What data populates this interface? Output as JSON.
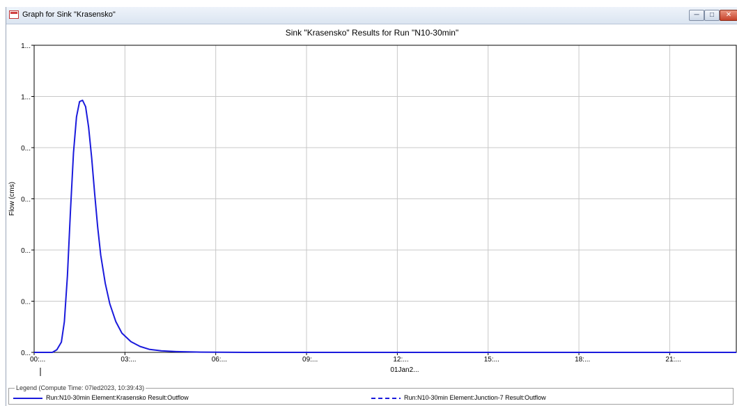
{
  "window": {
    "title": "Graph for Sink \"Krasensko\"",
    "buttons": {
      "minimize": "─",
      "maximize": "□",
      "close": "✕"
    }
  },
  "legend": {
    "caption": "Legend (Compute Time: 07led2023, 10:39:43)",
    "items": [
      {
        "label": "Run:N10-30min Element:Krasensko Result:Outflow",
        "color": "#1a1adc",
        "style": "solid"
      },
      {
        "label": "Run:N10-30min Element:Junction-7 Result:Outflow",
        "color": "#1a1adc",
        "style": "dashed"
      }
    ]
  },
  "chart_data": {
    "type": "line",
    "title": "Sink \"Krasensko\" Results for Run \"N10-30min\"",
    "xlabel": "01Jan2...",
    "ylabel": "Flow (cms)",
    "x_tick_labels": [
      "00:...",
      "03:...",
      "06:...",
      "09:...",
      "12:...",
      "15:...",
      "18:...",
      "21:..."
    ],
    "x_tick_hours": [
      0,
      3,
      6,
      9,
      12,
      15,
      18,
      21
    ],
    "xlim_hours": [
      0,
      23.2
    ],
    "y_tick_labels": [
      "0...",
      "0...",
      "0...",
      "0...",
      "0...",
      "1...",
      "1..."
    ],
    "ylim": [
      0,
      1.2
    ],
    "grid": true,
    "series": [
      {
        "name": "Run:N10-30min Element:Krasensko Result:Outflow",
        "color": "#1a1adc",
        "style": "solid",
        "points": [
          [
            0.0,
            0.0
          ],
          [
            0.6,
            0.0
          ],
          [
            0.75,
            0.01
          ],
          [
            0.9,
            0.04
          ],
          [
            1.0,
            0.12
          ],
          [
            1.1,
            0.3
          ],
          [
            1.2,
            0.55
          ],
          [
            1.3,
            0.78
          ],
          [
            1.4,
            0.92
          ],
          [
            1.5,
            0.98
          ],
          [
            1.6,
            0.985
          ],
          [
            1.7,
            0.96
          ],
          [
            1.8,
            0.88
          ],
          [
            1.9,
            0.76
          ],
          [
            2.0,
            0.62
          ],
          [
            2.1,
            0.49
          ],
          [
            2.2,
            0.38
          ],
          [
            2.35,
            0.27
          ],
          [
            2.5,
            0.19
          ],
          [
            2.7,
            0.12
          ],
          [
            2.9,
            0.075
          ],
          [
            3.2,
            0.042
          ],
          [
            3.5,
            0.023
          ],
          [
            3.8,
            0.012
          ],
          [
            4.2,
            0.006
          ],
          [
            4.7,
            0.003
          ],
          [
            5.5,
            0.001
          ],
          [
            7.0,
            0.0
          ],
          [
            23.2,
            0.0
          ]
        ]
      },
      {
        "name": "Run:N10-30min Element:Junction-7 Result:Outflow",
        "color": "#1a1adc",
        "style": "dashed",
        "points": []
      }
    ]
  }
}
